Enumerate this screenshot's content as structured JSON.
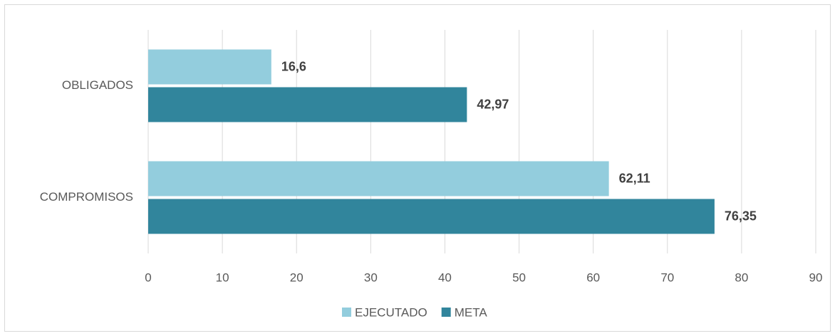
{
  "chart_data": {
    "type": "bar",
    "orientation": "horizontal",
    "categories": [
      "OBLIGADOS",
      "COMPROMISOS"
    ],
    "series": [
      {
        "name": "EJECUTADO",
        "color": "#93cddd",
        "values": [
          16.6,
          62.11
        ],
        "value_labels": [
          "16,6",
          "62,11"
        ]
      },
      {
        "name": "META",
        "color": "#31859c",
        "values": [
          42.97,
          76.35
        ],
        "value_labels": [
          "42,97",
          "76,35"
        ]
      }
    ],
    "xlim": [
      0,
      90
    ],
    "xticks": [
      0,
      10,
      20,
      30,
      40,
      50,
      60,
      70,
      80,
      90
    ],
    "grid": true,
    "legend": "bottom"
  }
}
